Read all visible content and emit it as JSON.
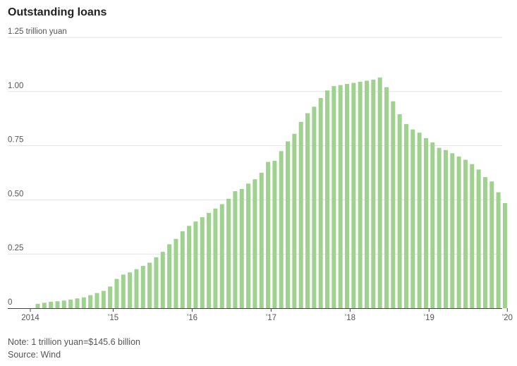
{
  "chart_data": {
    "type": "bar",
    "title": "Outstanding loans",
    "unit_label": "trillion yuan",
    "ylim": [
      0,
      1.25
    ],
    "y_ticks": [
      {
        "value": 0,
        "label": "0"
      },
      {
        "value": 0.25,
        "label": "0.25"
      },
      {
        "value": 0.5,
        "label": "0.50"
      },
      {
        "value": 0.75,
        "label": "0.75"
      },
      {
        "value": 1.0,
        "label": "1.00"
      },
      {
        "value": 1.25,
        "label": "1.25"
      }
    ],
    "x_ticks": [
      {
        "index": 0,
        "label": "2014"
      },
      {
        "index": 12,
        "label": "’15"
      },
      {
        "index": 24,
        "label": "’16"
      },
      {
        "index": 36,
        "label": "’17"
      },
      {
        "index": 48,
        "label": "’18"
      },
      {
        "index": 60,
        "label": "’19"
      },
      {
        "index": 72,
        "label": "’20"
      }
    ],
    "grid": true,
    "bar_color": "#9fd18f",
    "values": [
      0.02,
      0.025,
      0.03,
      0.032,
      0.035,
      0.04,
      0.045,
      0.05,
      0.06,
      0.07,
      0.08,
      0.1,
      0.135,
      0.155,
      0.165,
      0.18,
      0.195,
      0.21,
      0.235,
      0.26,
      0.295,
      0.32,
      0.355,
      0.38,
      0.4,
      0.42,
      0.44,
      0.46,
      0.48,
      0.505,
      0.54,
      0.55,
      0.575,
      0.595,
      0.625,
      0.675,
      0.68,
      0.725,
      0.77,
      0.805,
      0.86,
      0.9,
      0.93,
      0.97,
      1.005,
      1.025,
      1.03,
      1.035,
      1.04,
      1.045,
      1.05,
      1.055,
      1.065,
      1.02,
      0.955,
      0.895,
      0.85,
      0.825,
      0.81,
      0.785,
      0.765,
      0.74,
      0.73,
      0.715,
      0.7,
      0.685,
      0.665,
      0.64,
      0.605,
      0.585,
      0.535,
      0.485
    ]
  },
  "footer": {
    "note": "Note: 1 trillion yuan=$145.6 billion",
    "source": "Source: Wind"
  }
}
